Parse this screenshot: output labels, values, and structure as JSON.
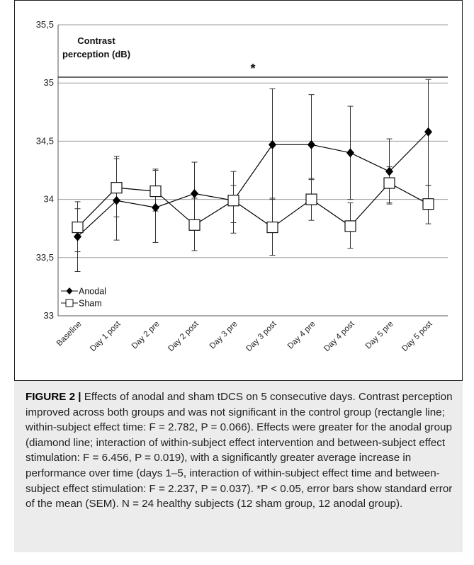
{
  "chart_data": {
    "type": "line",
    "title_lines": [
      "Contrast",
      "perception (dB)"
    ],
    "categories": [
      "Baseline",
      "Day 1 post",
      "Day 2 pre",
      "Day 2 post",
      "Day 3 pre",
      "Day 3 post",
      "Day 4 pre",
      "Day 4 post",
      "Day 5 pre",
      "Day 5 post"
    ],
    "y_tick_labels": [
      "33",
      "33,5",
      "34",
      "34,5",
      "35",
      "35,5"
    ],
    "ylim": [
      33,
      35.5
    ],
    "grid": true,
    "legend_position": "bottom-left",
    "significance_mark": "*",
    "significance_line_y": 35.05,
    "series": [
      {
        "name": "Anodal",
        "marker": "diamond",
        "color": "#000000",
        "values": [
          33.68,
          33.99,
          33.93,
          34.05,
          33.99,
          34.47,
          34.47,
          34.4,
          34.24,
          34.58
        ],
        "err_low": [
          33.38,
          33.65,
          33.63,
          33.78,
          33.71,
          34.0,
          34.17,
          34.0,
          33.97,
          34.12
        ],
        "err_high": [
          33.92,
          34.35,
          34.25,
          34.32,
          34.24,
          34.95,
          34.9,
          34.8,
          34.52,
          35.03
        ]
      },
      {
        "name": "Sham",
        "marker": "square",
        "color": "#000000",
        "values": [
          33.76,
          34.1,
          34.07,
          33.78,
          33.99,
          33.76,
          34.0,
          33.77,
          34.14,
          33.96
        ],
        "err_low": [
          33.55,
          33.85,
          33.9,
          33.56,
          33.8,
          33.52,
          33.82,
          33.58,
          33.96,
          33.79
        ],
        "err_high": [
          33.98,
          34.37,
          34.26,
          34.01,
          34.12,
          34.01,
          34.18,
          33.97,
          34.28,
          34.12
        ]
      }
    ]
  },
  "caption": {
    "label": "FIGURE 2 |",
    "text": "Effects of anodal and sham tDCS on 5 consecutive days. Contrast perception improved across both groups and was not significant in the control group (rectangle line; within-subject effect time: F = 2.782, P = 0.066). Effects were greater for the anodal group (diamond line; interaction of within-subject effect intervention and between-subject effect stimulation: F = 6.456, P = 0.019), with a significantly greater average increase in performance over time (days 1–5, interaction of within-subject effect time and between-subject effect stimulation: F = 2.237, P = 0.037). *P < 0.05, error bars show standard error of the mean (SEM). N = 24 healthy subjects (12 sham group, 12 anodal group)."
  }
}
